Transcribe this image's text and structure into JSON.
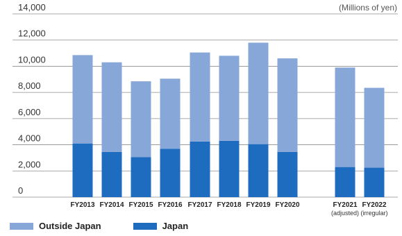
{
  "chart_data": {
    "type": "bar",
    "stacked": true,
    "unit_label": "(Millions of yen)",
    "ylim": [
      0,
      14000
    ],
    "yticks": [
      "0",
      "2,000",
      "4,000",
      "6,000",
      "8,000",
      "10,000",
      "12,000",
      "14,000"
    ],
    "categories": [
      "FY2013",
      "FY2014",
      "FY2015",
      "FY2016",
      "FY2017",
      "FY2018",
      "FY2019",
      "FY2020",
      "FY2021",
      "FY2022"
    ],
    "category_notes": [
      "",
      "",
      "",
      "",
      "",
      "",
      "",
      "",
      "(adjusted)",
      "(irregular)"
    ],
    "series": [
      {
        "name": "Japan",
        "color": "#1e6cc0",
        "values": [
          4100,
          3450,
          3050,
          3700,
          4250,
          4300,
          4050,
          3450,
          2300,
          2250
        ]
      },
      {
        "name": "Outside Japan",
        "color": "#86a7d8",
        "values": [
          6750,
          6850,
          5800,
          5350,
          6800,
          6500,
          7750,
          7150,
          7600,
          6100
        ]
      }
    ],
    "legend": [
      {
        "name": "Outside Japan",
        "color": "#86a7d8"
      },
      {
        "name": "Japan",
        "color": "#1e6cc0"
      }
    ],
    "legend_position": "bottom-left",
    "grid": true
  }
}
